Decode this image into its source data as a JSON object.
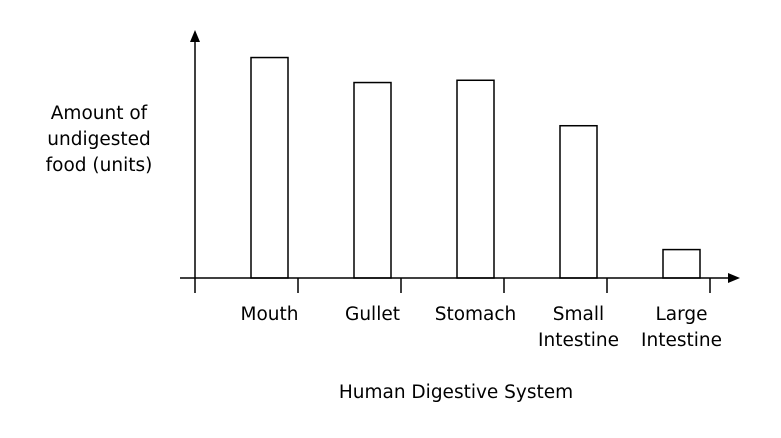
{
  "chart_data": {
    "type": "bar",
    "title": "",
    "xlabel": "Human Digestive System",
    "ylabel": "Amount of\nundigested\nfood (units)",
    "categories": [
      "Mouth",
      "Gullet",
      "Stomach",
      "Small\nIntestine",
      "Large\nIntestine"
    ],
    "values": [
      9.7,
      8.6,
      8.7,
      6.7,
      1.25
    ],
    "ylim": [
      0,
      11
    ],
    "grid": false,
    "legend": "none",
    "bar_fill": "#ffffff",
    "bar_stroke": "#000000",
    "axis_color": "#000000"
  }
}
